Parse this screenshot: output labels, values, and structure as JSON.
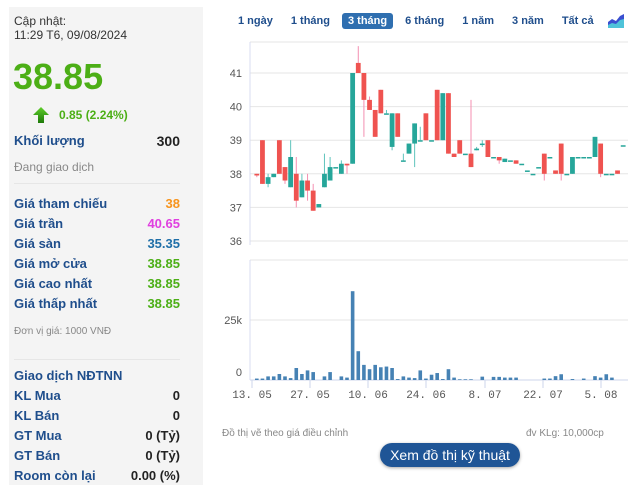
{
  "quote": {
    "updated_label": "Cập nhật:",
    "updated_time": "11:29 T6, 09/08/2024",
    "price": "38.85",
    "change": "0.85 (2.24%)",
    "direction": "up",
    "volume_label": "Khối lượng",
    "volume_value": "300",
    "status": "Đang giao dịch"
  },
  "prices": [
    {
      "label": "Giá tham chiếu",
      "value": "38",
      "color": "#f7941d"
    },
    {
      "label": "Giá trần",
      "value": "40.65",
      "color": "#e040e0"
    },
    {
      "label": "Giá sàn",
      "value": "35.35",
      "color": "#1f6fa8"
    },
    {
      "label": "Giá mở cửa",
      "value": "38.85",
      "color": "#4caf16"
    },
    {
      "label": "Giá cao nhất",
      "value": "38.85",
      "color": "#4caf16"
    },
    {
      "label": "Giá thấp nhất",
      "value": "38.85",
      "color": "#4caf16"
    }
  ],
  "unit_note": "Đơn vị giá: 1000 VNĐ",
  "foreign": {
    "title": "Giao dịch NĐTNN",
    "rows": [
      {
        "label": "KL Mua",
        "value": "0"
      },
      {
        "label": "KL Bán",
        "value": "0"
      },
      {
        "label": "GT Mua",
        "value": "0 (Tỷ)"
      },
      {
        "label": "GT Bán",
        "value": "0 (Tỷ)"
      },
      {
        "label": "Room còn lại",
        "value": "0.00 (%)"
      }
    ]
  },
  "tabs": [
    {
      "label": "1 ngày",
      "active": false
    },
    {
      "label": "1 tháng",
      "active": false
    },
    {
      "label": "3 tháng",
      "active": true
    },
    {
      "label": "6 tháng",
      "active": false
    },
    {
      "label": "1 năm",
      "active": false
    },
    {
      "label": "3 năm",
      "active": false
    },
    {
      "label": "Tất cả",
      "active": false
    }
  ],
  "chart_type_icon": "area-chart-icon",
  "footer": {
    "left_note": "Đồ thị vẽ theo giá điều chỉnh",
    "right_note": "đv KLg: 10,000cp",
    "button": "Xem đồ thị kỹ thuật"
  },
  "colors": {
    "up": "#26a69a",
    "down": "#ef5350",
    "volume": "#4682b4",
    "grid": "#e6e6e6"
  },
  "chart_data": [
    {
      "type": "candlestick",
      "title": "",
      "x_ticks": [
        "13. 05",
        "27. 05",
        "10. 06",
        "24. 06",
        "8. 07",
        "22. 07",
        "5. 08"
      ],
      "y_ticks": [
        36,
        37,
        38,
        39,
        40,
        41
      ],
      "ylim": [
        35.95,
        41.95
      ],
      "grid": true,
      "candles": [
        {
          "o": 38.0,
          "h": 38.0,
          "l": 37.9,
          "c": 37.95
        },
        {
          "o": 39.0,
          "h": 39.0,
          "l": 37.7,
          "c": 37.7
        },
        {
          "o": 37.7,
          "h": 38.0,
          "l": 37.6,
          "c": 37.9
        },
        {
          "o": 37.9,
          "h": 38.0,
          "l": 37.9,
          "c": 38.0
        },
        {
          "o": 39.0,
          "h": 39.0,
          "l": 38.0,
          "c": 38.0
        },
        {
          "o": 38.2,
          "h": 38.2,
          "l": 37.7,
          "c": 37.8
        },
        {
          "o": 37.6,
          "h": 39.0,
          "l": 37.6,
          "c": 38.5
        },
        {
          "o": 38.0,
          "h": 38.5,
          "l": 37.0,
          "c": 37.2
        },
        {
          "o": 37.3,
          "h": 38.0,
          "l": 37.3,
          "c": 37.8
        },
        {
          "o": 37.8,
          "h": 38.0,
          "l": 37.2,
          "c": 37.5
        },
        {
          "o": 37.5,
          "h": 37.7,
          "l": 36.9,
          "c": 36.9
        },
        {
          "o": 37.0,
          "h": 37.1,
          "l": 37.0,
          "c": 37.1
        },
        {
          "o": 37.6,
          "h": 38.6,
          "l": 37.6,
          "c": 38.0
        },
        {
          "o": 37.8,
          "h": 38.5,
          "l": 37.8,
          "c": 38.2
        },
        {
          "o": 38.2,
          "h": 38.2,
          "l": 38.2,
          "c": 38.2
        },
        {
          "o": 38.0,
          "h": 38.4,
          "l": 38.0,
          "c": 38.3
        },
        {
          "o": 38.3,
          "h": 38.3,
          "l": 38.0,
          "c": 38.25
        },
        {
          "o": 38.3,
          "h": 41.0,
          "l": 38.3,
          "c": 41.0
        },
        {
          "o": 41.3,
          "h": 41.8,
          "l": 41.0,
          "c": 41.0
        },
        {
          "o": 41.0,
          "h": 41.0,
          "l": 39.1,
          "c": 40.2
        },
        {
          "o": 40.2,
          "h": 40.3,
          "l": 39.9,
          "c": 39.9
        },
        {
          "o": 39.9,
          "h": 39.9,
          "l": 39.1,
          "c": 39.1
        },
        {
          "o": 40.5,
          "h": 40.5,
          "l": 39.8,
          "c": 39.8
        },
        {
          "o": 39.8,
          "h": 39.9,
          "l": 39.8,
          "c": 39.8
        },
        {
          "o": 38.8,
          "h": 39.8,
          "l": 38.7,
          "c": 39.8
        },
        {
          "o": 39.8,
          "h": 39.8,
          "l": 39.1,
          "c": 39.1
        },
        {
          "o": 38.4,
          "h": 38.6,
          "l": 38.4,
          "c": 38.4
        },
        {
          "o": 38.6,
          "h": 38.9,
          "l": 38.6,
          "c": 38.9
        },
        {
          "o": 38.9,
          "h": 39.5,
          "l": 38.2,
          "c": 39.5
        },
        {
          "o": 39.0,
          "h": 39.4,
          "l": 39.0,
          "c": 39.0
        },
        {
          "o": 39.8,
          "h": 39.8,
          "l": 39.0,
          "c": 39.0
        },
        {
          "o": 39.0,
          "h": 39.0,
          "l": 39.0,
          "c": 39.0
        },
        {
          "o": 40.5,
          "h": 40.5,
          "l": 39.0,
          "c": 39.0
        },
        {
          "o": 39.0,
          "h": 40.4,
          "l": 39.0,
          "c": 40.4
        },
        {
          "o": 40.4,
          "h": 40.4,
          "l": 38.6,
          "c": 38.6
        },
        {
          "o": 38.6,
          "h": 38.6,
          "l": 38.5,
          "c": 38.5
        },
        {
          "o": 39.0,
          "h": 39.0,
          "l": 38.6,
          "c": 38.6
        },
        {
          "o": 38.6,
          "h": 38.6,
          "l": 38.6,
          "c": 38.6
        },
        {
          "o": 38.6,
          "h": 40.2,
          "l": 38.2,
          "c": 38.2
        },
        {
          "o": 38.7,
          "h": 38.8,
          "l": 38.7,
          "c": 38.75
        },
        {
          "o": 38.9,
          "h": 39.0,
          "l": 38.8,
          "c": 38.9
        },
        {
          "o": 39.0,
          "h": 39.0,
          "l": 38.5,
          "c": 38.5
        },
        {
          "o": 38.5,
          "h": 38.5,
          "l": 38.5,
          "c": 38.5
        },
        {
          "o": 38.5,
          "h": 38.5,
          "l": 38.3,
          "c": 38.4
        },
        {
          "o": 38.35,
          "h": 38.45,
          "l": 38.35,
          "c": 38.45
        },
        {
          "o": 38.4,
          "h": 38.4,
          "l": 38.4,
          "c": 38.4
        },
        {
          "o": 38.4,
          "h": 38.4,
          "l": 38.3,
          "c": 38.3
        },
        {
          "o": 38.3,
          "h": 38.3,
          "l": 38.3,
          "c": 38.3
        },
        {
          "o": 38.1,
          "h": 38.1,
          "l": 38.1,
          "c": 38.1
        },
        {
          "o": 38.0,
          "h": 38.0,
          "l": 38.0,
          "c": 38.0
        },
        {
          "o": 38.2,
          "h": 38.2,
          "l": 38.2,
          "c": 38.2
        },
        {
          "o": 38.6,
          "h": 38.6,
          "l": 37.8,
          "c": 38.0
        },
        {
          "o": 38.5,
          "h": 38.5,
          "l": 38.5,
          "c": 38.5
        },
        {
          "o": 38.1,
          "h": 38.1,
          "l": 38.0,
          "c": 38.0
        },
        {
          "o": 38.9,
          "h": 38.9,
          "l": 37.8,
          "c": 38.0
        },
        {
          "o": 38.0,
          "h": 38.0,
          "l": 38.0,
          "c": 38.0
        },
        {
          "o": 38.0,
          "h": 38.5,
          "l": 38.0,
          "c": 38.5
        },
        {
          "o": 38.5,
          "h": 38.5,
          "l": 38.5,
          "c": 38.5
        },
        {
          "o": 38.5,
          "h": 38.5,
          "l": 38.5,
          "c": 38.5
        },
        {
          "o": 38.5,
          "h": 38.5,
          "l": 38.5,
          "c": 38.5
        },
        {
          "o": 38.5,
          "h": 39.1,
          "l": 38.5,
          "c": 39.1
        },
        {
          "o": 38.9,
          "h": 38.9,
          "l": 37.9,
          "c": 38.0
        },
        {
          "o": 38.0,
          "h": 38.0,
          "l": 38.0,
          "c": 38.0
        },
        {
          "o": 38.0,
          "h": 38.0,
          "l": 38.0,
          "c": 38.0
        },
        {
          "o": 38.1,
          "h": 38.1,
          "l": 38.0,
          "c": 38.0
        },
        {
          "o": 38.85,
          "h": 38.85,
          "l": 38.85,
          "c": 38.85
        }
      ]
    },
    {
      "type": "bar",
      "title": "",
      "ylabel": "",
      "y_ticks": [
        "0",
        "25k"
      ],
      "ylim": [
        0,
        50000
      ],
      "x_ticks": [
        "13. 05",
        "27. 05",
        "10. 06",
        "24. 06",
        "8. 07",
        "22. 07",
        "5. 08"
      ],
      "values": [
        600,
        600,
        1500,
        1500,
        2500,
        1500,
        800,
        5000,
        2500,
        4000,
        3300,
        0,
        1500,
        3300,
        0,
        1500,
        1000,
        37000,
        12000,
        6300,
        4500,
        6300,
        5300,
        5600,
        5000,
        400,
        1500,
        1000,
        800,
        4000,
        600,
        2200,
        2900,
        400,
        4500,
        1000,
        300,
        300,
        300,
        0,
        1400,
        0,
        1300,
        1300,
        1000,
        1000,
        1000,
        0,
        0,
        0,
        0,
        600,
        600,
        1600,
        2400,
        0,
        400,
        0,
        600,
        0,
        1600,
        1000,
        2400,
        1000,
        0,
        0
      ]
    }
  ]
}
